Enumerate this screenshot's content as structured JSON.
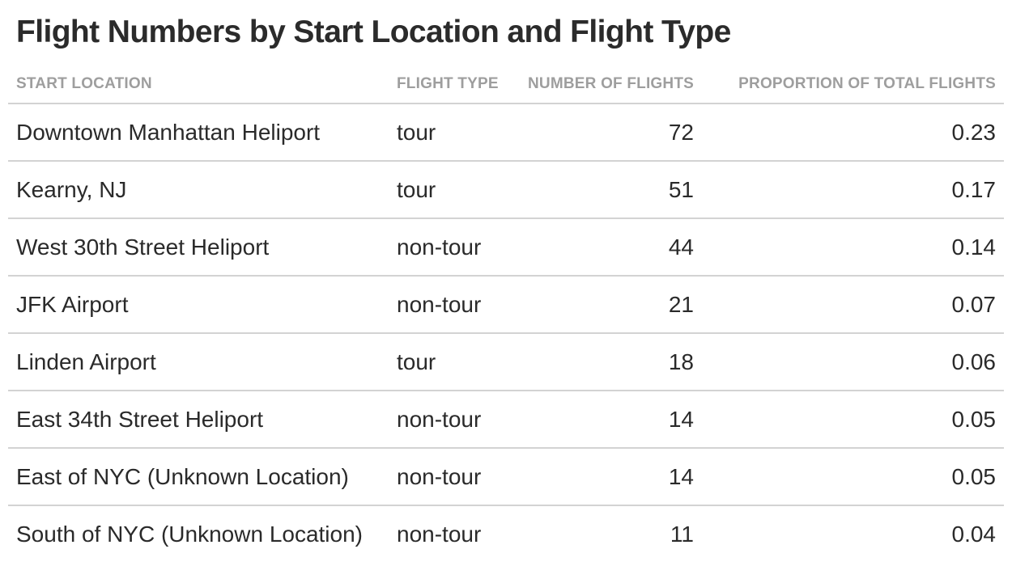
{
  "chart_data": {
    "type": "table",
    "title": "Flight Numbers by Start Location and Flight Type",
    "columns": [
      "START LOCATION",
      "FLIGHT TYPE",
      "NUMBER OF FLIGHTS",
      "PROPORTION OF TOTAL FLIGHTS"
    ],
    "rows": [
      [
        "Downtown Manhattan Heliport",
        "tour",
        "72",
        "0.23"
      ],
      [
        "Kearny, NJ",
        "tour",
        "51",
        "0.17"
      ],
      [
        "West 30th Street Heliport",
        "non-tour",
        "44",
        "0.14"
      ],
      [
        "JFK Airport",
        "non-tour",
        "21",
        "0.07"
      ],
      [
        "Linden Airport",
        "tour",
        "18",
        "0.06"
      ],
      [
        "East 34th Street Heliport",
        "non-tour",
        "14",
        "0.05"
      ],
      [
        "East of NYC (Unknown Location)",
        "non-tour",
        "14",
        "0.05"
      ],
      [
        "South of NYC (Unknown Location)",
        "non-tour",
        "11",
        "0.04"
      ]
    ],
    "colors": {
      "header_text": "#9e9e9e",
      "body_text": "#2a2a2a",
      "rule": "#d3d3d3"
    }
  }
}
